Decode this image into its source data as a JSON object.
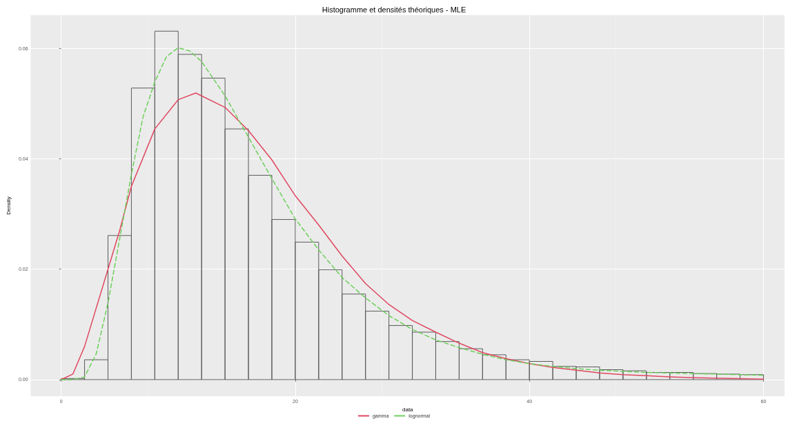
{
  "chart_data": {
    "type": "histogram",
    "title": "Histogramme et densités théoriques - MLE",
    "xlabel": "data",
    "ylabel": "Density",
    "bins": [
      0,
      2,
      4,
      6,
      8,
      10,
      12,
      14,
      16,
      18,
      20,
      22,
      24,
      26,
      28,
      30,
      32,
      34,
      36,
      38,
      40,
      42,
      44,
      46,
      48,
      50,
      52,
      54,
      56,
      58,
      60
    ],
    "values": [
      0.0002,
      0.0036,
      0.0261,
      0.0528,
      0.0631,
      0.0589,
      0.0546,
      0.0454,
      0.037,
      0.029,
      0.0249,
      0.0199,
      0.0155,
      0.0124,
      0.0098,
      0.0086,
      0.0069,
      0.0056,
      0.0045,
      0.0036,
      0.0033,
      0.0024,
      0.0023,
      0.0018,
      0.0016,
      0.0013,
      0.0013,
      0.0011,
      0.001,
      0.0009
    ],
    "color": "#5a5a5a",
    "series": [
      {
        "name": "gamma",
        "type": "line",
        "color": "#e0475f",
        "line_style": "solid",
        "x": [
          0,
          1,
          2,
          4,
          5,
          6,
          8,
          10,
          11.5,
          14,
          16,
          18,
          20,
          22,
          24,
          26,
          28,
          30,
          32,
          34,
          36,
          38,
          40,
          42,
          44,
          46,
          48,
          50,
          52,
          55,
          60
        ],
        "values": [
          0,
          0.001,
          0.006,
          0.02,
          0.027,
          0.035,
          0.0454,
          0.0507,
          0.0519,
          0.0493,
          0.0451,
          0.0398,
          0.0333,
          0.028,
          0.0224,
          0.0174,
          0.0136,
          0.0107,
          0.0086,
          0.0066,
          0.0049,
          0.0038,
          0.0029,
          0.0022,
          0.0017,
          0.0012,
          0.0009,
          0.0007,
          0.0005,
          0.0003,
          0.0001
        ]
      },
      {
        "name": "lognormal",
        "type": "line",
        "color": "#6ccf5a",
        "line_style": "dashed",
        "x": [
          0,
          1,
          2,
          3,
          4,
          5,
          6,
          7,
          8,
          9,
          10,
          11,
          12,
          14,
          16,
          18,
          20,
          22,
          24,
          26,
          28,
          30,
          32,
          34,
          36,
          38,
          40,
          42,
          44,
          46,
          48,
          50,
          52,
          54,
          56,
          58,
          60
        ],
        "values": [
          0,
          0,
          0.0005,
          0.0047,
          0.0139,
          0.0255,
          0.0372,
          0.0476,
          0.0539,
          0.0585,
          0.0601,
          0.0595,
          0.0576,
          0.0514,
          0.0439,
          0.0364,
          0.0291,
          0.0235,
          0.0185,
          0.0148,
          0.0116,
          0.0091,
          0.0072,
          0.0058,
          0.0046,
          0.0036,
          0.0029,
          0.0024,
          0.002,
          0.0017,
          0.0015,
          0.0013,
          0.0012,
          0.0011,
          0.001,
          0.0009,
          0.0008
        ]
      }
    ],
    "xlim": [
      -2.6,
      61.8
    ],
    "ylim": [
      -0.003,
      0.066
    ],
    "xticks": [
      0,
      20,
      40,
      60
    ],
    "yticks": [
      {
        "value": 0,
        "label": "0.00"
      },
      {
        "value": 0.02,
        "label": "0.02"
      },
      {
        "value": 0.04,
        "label": "0.04"
      },
      {
        "value": 0.06,
        "label": "0.06"
      }
    ],
    "grid": true,
    "legend": "bottom"
  }
}
